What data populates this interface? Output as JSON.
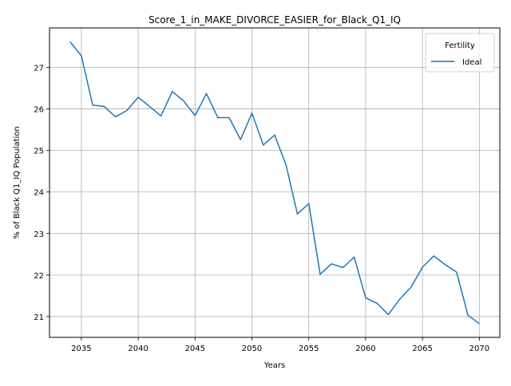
{
  "chart_data": {
    "type": "line",
    "title": "Score_1_in_MAKE_DIVORCE_EASIER_for_Black_Q1_IQ",
    "xlabel": "Years",
    "ylabel": "% of Black Q1_IQ Population",
    "xlim": [
      2032.2,
      2071.8
    ],
    "ylim": [
      20.5,
      27.95
    ],
    "xticks": [
      2035,
      2040,
      2045,
      2050,
      2055,
      2060,
      2065,
      2070
    ],
    "yticks": [
      21,
      22,
      23,
      24,
      25,
      26,
      27
    ],
    "grid": true,
    "legend": {
      "title": "Fertility",
      "position": "top-right"
    },
    "series": [
      {
        "name": "Ideal",
        "color": "#1f77b4",
        "x": [
          2034,
          2035,
          2036,
          2037,
          2038,
          2039,
          2040,
          2041,
          2042,
          2043,
          2044,
          2045,
          2046,
          2047,
          2048,
          2049,
          2050,
          2051,
          2052,
          2053,
          2054,
          2055,
          2056,
          2057,
          2058,
          2059,
          2060,
          2061,
          2062,
          2063,
          2064,
          2065,
          2066,
          2067,
          2068,
          2069,
          2070
        ],
        "y": [
          27.62,
          27.28,
          26.09,
          26.06,
          25.81,
          25.96,
          26.28,
          26.06,
          25.83,
          26.42,
          26.19,
          25.84,
          26.37,
          25.79,
          25.79,
          25.26,
          25.9,
          25.13,
          25.37,
          24.65,
          23.47,
          23.72,
          22.02,
          22.27,
          22.18,
          22.43,
          21.45,
          21.32,
          21.05,
          21.42,
          21.71,
          22.19,
          22.46,
          22.25,
          22.07,
          21.03,
          20.83
        ]
      }
    ]
  }
}
